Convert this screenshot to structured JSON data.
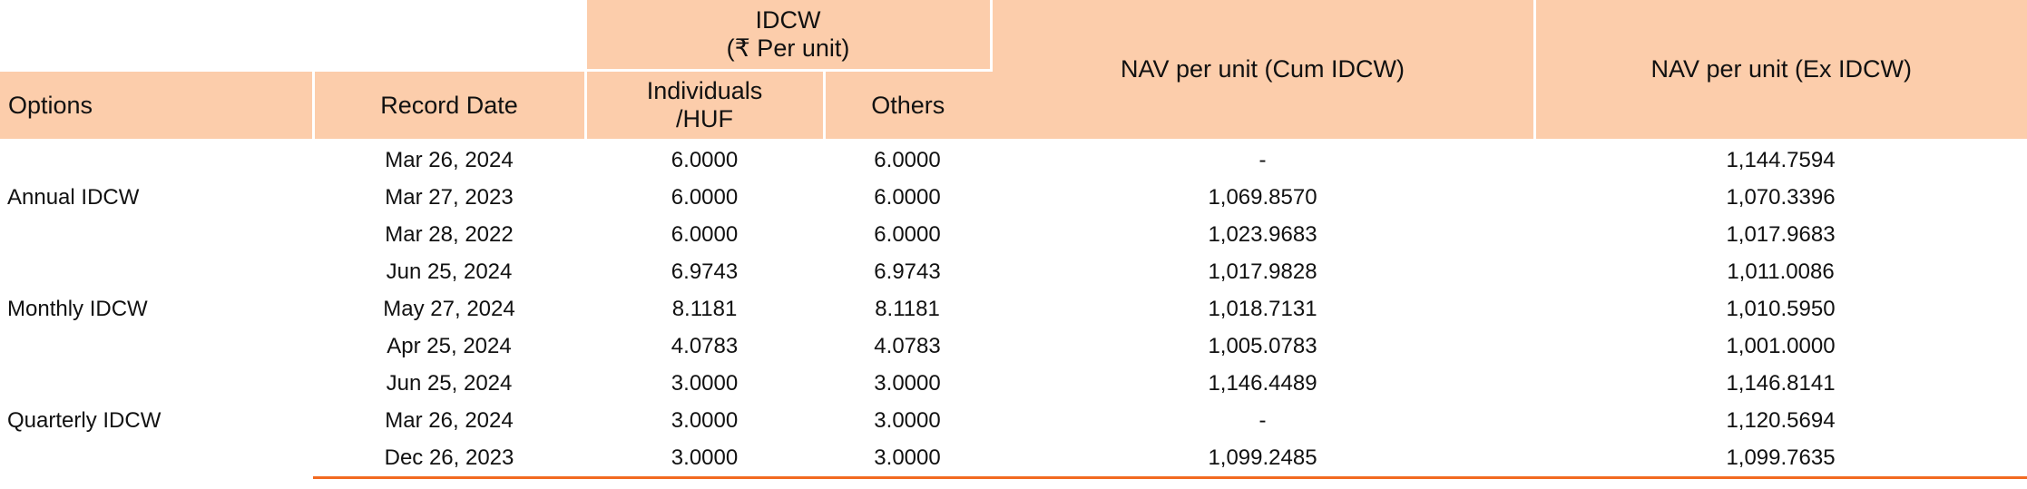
{
  "header": {
    "idcw_group": "IDCW",
    "idcw_group_sub": "(₹ Per unit)",
    "options": "Options",
    "record_date": "Record Date",
    "individuals_line1": "Individuals",
    "individuals_line2": "/HUF",
    "others": "Others",
    "nav_cum": "NAV per unit (Cum IDCW)",
    "nav_ex": "NAV per unit (Ex IDCW)"
  },
  "groups": [
    {
      "option": "Annual IDCW",
      "rows": [
        {
          "record_date": "Mar 26, 2024",
          "individuals": "6.0000",
          "others": "6.0000",
          "nav_cum": "-",
          "nav_ex": "1,144.7594"
        },
        {
          "record_date": "Mar 27, 2023",
          "individuals": "6.0000",
          "others": "6.0000",
          "nav_cum": "1,069.8570",
          "nav_ex": "1,070.3396"
        },
        {
          "record_date": "Mar 28, 2022",
          "individuals": "6.0000",
          "others": "6.0000",
          "nav_cum": "1,023.9683",
          "nav_ex": "1,017.9683"
        }
      ]
    },
    {
      "option": "Monthly IDCW",
      "rows": [
        {
          "record_date": "Jun 25, 2024",
          "individuals": "6.9743",
          "others": "6.9743",
          "nav_cum": "1,017.9828",
          "nav_ex": "1,011.0086"
        },
        {
          "record_date": "May 27, 2024",
          "individuals": "8.1181",
          "others": "8.1181",
          "nav_cum": "1,018.7131",
          "nav_ex": "1,010.5950"
        },
        {
          "record_date": "Apr 25, 2024",
          "individuals": "4.0783",
          "others": "4.0783",
          "nav_cum": "1,005.0783",
          "nav_ex": "1,001.0000"
        }
      ]
    },
    {
      "option": "Quarterly IDCW",
      "rows": [
        {
          "record_date": "Jun 25, 2024",
          "individuals": "3.0000",
          "others": "3.0000",
          "nav_cum": "1,146.4489",
          "nav_ex": "1,146.8141"
        },
        {
          "record_date": "Mar 26, 2024",
          "individuals": "3.0000",
          "others": "3.0000",
          "nav_cum": "-",
          "nav_ex": "1,120.5694"
        },
        {
          "record_date": "Dec 26, 2023",
          "individuals": "3.0000",
          "others": "3.0000",
          "nav_cum": "1,099.2485",
          "nav_ex": "1,099.7635"
        }
      ]
    }
  ],
  "colors": {
    "header_bg": "#fccdab",
    "bottom_rule": "#f26a21"
  }
}
